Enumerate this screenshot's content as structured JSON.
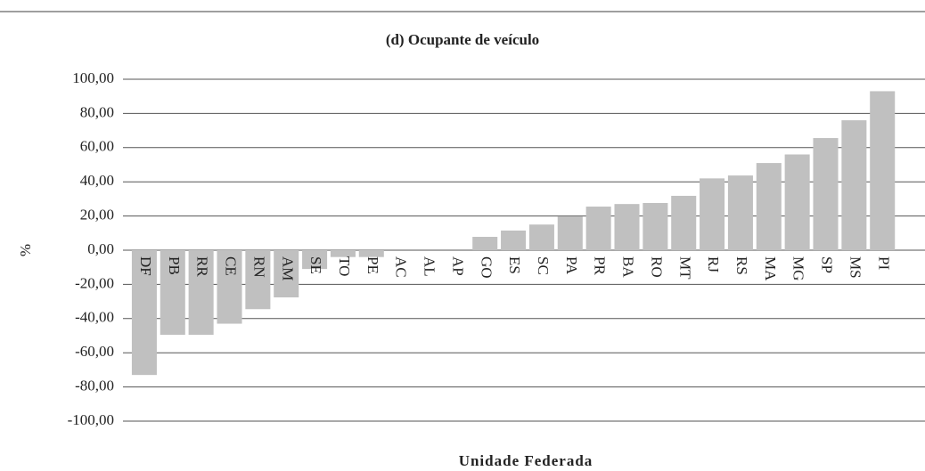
{
  "chart_data": {
    "type": "bar",
    "title": "(d) Ocupante de veículo",
    "x_label": "Unidade Federada",
    "y_label": "%",
    "categories": [
      "DF",
      "PB",
      "RR",
      "CE",
      "RN",
      "AM",
      "SE",
      "TO",
      "PE",
      "AC",
      "AL",
      "AP",
      "GO",
      "ES",
      "SC",
      "PA",
      "PR",
      "BA",
      "RO",
      "MT",
      "RJ",
      "RS",
      "MA",
      "MG",
      "SP",
      "MS",
      "PI"
    ],
    "values": [
      -73,
      -49.5,
      -49.5,
      -43,
      -34.5,
      -27.6,
      -11,
      -4,
      -4,
      0,
      0,
      0,
      7.8,
      11.5,
      15,
      19.8,
      25.5,
      27,
      27.6,
      31.8,
      42,
      43.7,
      51,
      56,
      65.6,
      76,
      93
    ],
    "color": "#c0c0c0",
    "ylim": [
      -100,
      100
    ],
    "yticks": [
      {
        "value": -100,
        "label": "-100,00"
      },
      {
        "value": -80,
        "label": "-80,00"
      },
      {
        "value": -60,
        "label": "-60,00"
      },
      {
        "value": -40,
        "label": "-40,00"
      },
      {
        "value": -20,
        "label": "-20,00"
      },
      {
        "value": 0,
        "label": "0,00"
      },
      {
        "value": 20,
        "label": "20,00"
      },
      {
        "value": 40,
        "label": "40,00"
      },
      {
        "value": 60,
        "label": "60,00"
      },
      {
        "value": 80,
        "label": "80,00"
      },
      {
        "value": 100,
        "label": "100,00"
      }
    ],
    "grid": true
  }
}
